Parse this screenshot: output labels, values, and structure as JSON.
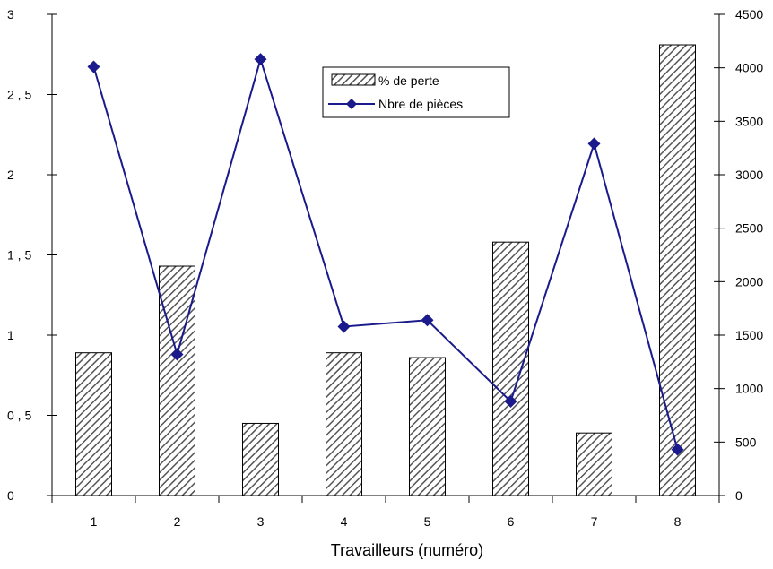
{
  "chart_data": {
    "type": "bar",
    "categories": [
      "1",
      "2",
      "3",
      "4",
      "5",
      "6",
      "7",
      "8"
    ],
    "series": [
      {
        "name": "% de perte",
        "type": "bar",
        "axis": "left",
        "values": [
          0.89,
          1.43,
          0.45,
          0.89,
          0.86,
          1.58,
          0.39,
          2.81
        ]
      },
      {
        "name": "Nbre de pièces",
        "type": "line",
        "axis": "right",
        "values": [
          4010,
          1320,
          4080,
          1580,
          1640,
          880,
          3290,
          430
        ]
      }
    ],
    "xlabel": "Travailleurs (numéro)",
    "ylabel": "",
    "y2label": "",
    "ylim": [
      0,
      3
    ],
    "y2lim": [
      0,
      4500
    ],
    "yticks": [
      "0",
      "0 , 5",
      "1",
      "1 , 5",
      "2",
      "2 , 5",
      "3"
    ],
    "y2ticks": [
      "0",
      "500",
      "1000",
      "1500",
      "2000",
      "2500",
      "3000",
      "3500",
      "4000",
      "4500"
    ],
    "legend": {
      "placement": "top-center",
      "entries": [
        "% de perte",
        "Nbre de pièces"
      ]
    },
    "grid": false,
    "colors": {
      "line": "#1a1a8c",
      "bar_hatch": "#555555",
      "axis": "#000000"
    }
  }
}
